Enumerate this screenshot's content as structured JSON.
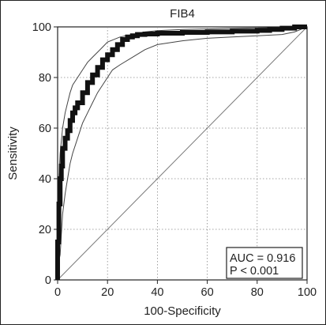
{
  "chart_data": {
    "type": "line",
    "title": "FIB4",
    "xlabel": "100-Specificity",
    "ylabel": "Sensitivity",
    "xlim": [
      0,
      100
    ],
    "ylim": [
      0,
      100
    ],
    "xticks": [
      0,
      20,
      40,
      60,
      80,
      100
    ],
    "yticks": [
      0,
      20,
      40,
      60,
      80,
      100
    ],
    "grid": true,
    "annotation": {
      "auc": "AUC = 0.916",
      "p": "P < 0.001"
    },
    "series": [
      {
        "role": "roc",
        "x": [
          0,
          0,
          0.5,
          0.5,
          1,
          1,
          1.5,
          1.5,
          2,
          2,
          3,
          3,
          4,
          4,
          5,
          5,
          6,
          6,
          7,
          7,
          8,
          8,
          10,
          10,
          12,
          12,
          14,
          14,
          16,
          16,
          18,
          18,
          20,
          20,
          22,
          22,
          24,
          24,
          26,
          26,
          28,
          28,
          30,
          30,
          32,
          32,
          35,
          35,
          40,
          40,
          50,
          50,
          60,
          60,
          70,
          70,
          80,
          80,
          85,
          85,
          90,
          90,
          95,
          95,
          100
        ],
        "y": [
          0,
          15,
          15,
          30,
          30,
          40,
          40,
          45,
          45,
          52,
          52,
          56,
          56,
          59,
          59,
          63,
          63,
          66,
          66,
          68,
          68,
          70,
          70,
          74,
          74,
          78,
          78,
          81,
          81,
          84,
          84,
          87,
          87,
          89,
          89,
          91,
          91,
          93,
          93,
          95,
          95,
          96,
          96,
          96.5,
          96.5,
          97,
          97,
          97.2,
          97.2,
          97.5,
          97.5,
          97.8,
          97.8,
          98,
          98,
          98.3,
          98.3,
          98.6,
          98.6,
          99,
          99,
          99.5,
          99.5,
          100,
          100
        ]
      },
      {
        "role": "ci-upper",
        "x": [
          0,
          0.5,
          1,
          2,
          3,
          4,
          5,
          6,
          8,
          10,
          12,
          14,
          16,
          18,
          20,
          25,
          30,
          35,
          40,
          50,
          60,
          70,
          80,
          90,
          100
        ],
        "y": [
          20,
          40,
          50,
          60,
          66,
          70,
          74,
          77,
          80,
          83,
          86,
          88,
          90,
          92,
          94,
          96,
          97,
          98,
          98.5,
          99,
          99.2,
          99.4,
          99.6,
          99.8,
          100
        ]
      },
      {
        "role": "ci-lower",
        "x": [
          0,
          1,
          1.5,
          2,
          3,
          4,
          5,
          6,
          8,
          10,
          12,
          14,
          16,
          18,
          20,
          22,
          25,
          30,
          35,
          40,
          50,
          60,
          70,
          80,
          90,
          95,
          100
        ],
        "y": [
          5,
          10,
          18,
          26,
          34,
          40,
          46,
          50,
          56,
          62,
          66,
          70,
          74,
          77,
          80,
          83,
          85,
          88,
          91,
          93,
          94.5,
          95.5,
          96,
          96.5,
          97,
          98,
          100
        ]
      },
      {
        "role": "diagonal",
        "x": [
          0,
          100
        ],
        "y": [
          0,
          100
        ]
      }
    ]
  }
}
